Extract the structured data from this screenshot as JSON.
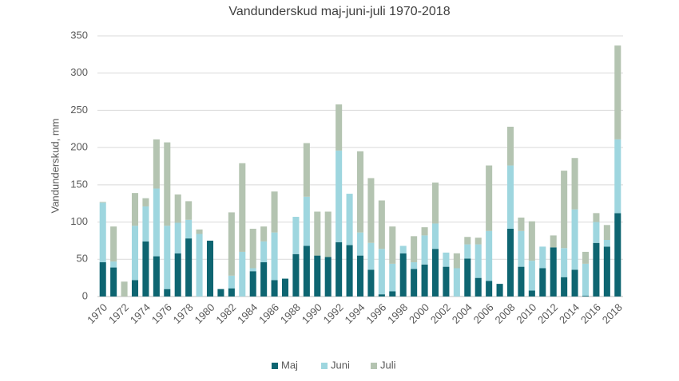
{
  "chart_data": {
    "type": "stacked_bar",
    "title": "Vandunderskud maj-juni-juli 1970-2018",
    "y_label": "Vandunderskud, mm",
    "categories": [
      "1970",
      null,
      "1972",
      null,
      "1974",
      null,
      "1976",
      null,
      "1978",
      null,
      "1980",
      null,
      "1982",
      null,
      "1984",
      null,
      "1986",
      null,
      "1988",
      null,
      "1990",
      null,
      "1992",
      null,
      "1994",
      null,
      "1996",
      null,
      "1998",
      null,
      "2000",
      null,
      "2002",
      null,
      "2004",
      null,
      "2006",
      null,
      "2008",
      null,
      "2010",
      null,
      "2012",
      null,
      "2014",
      null,
      "2016",
      null,
      "2018"
    ],
    "series": [
      {
        "name": "Maj",
        "color": "#0e6571",
        "values": [
          46,
          39,
          0,
          22,
          74,
          54,
          10,
          58,
          78,
          0,
          75,
          10,
          11,
          0,
          34,
          46,
          22,
          24,
          57,
          68,
          55,
          53,
          73,
          69,
          55,
          36,
          3,
          7,
          58,
          37,
          43,
          64,
          40,
          0,
          51,
          25,
          21,
          17,
          91,
          40,
          8,
          38,
          66,
          26,
          36,
          1,
          72,
          67,
          112
        ]
      },
      {
        "name": "Juni",
        "color": "#9ed6df",
        "values": [
          80,
          8,
          0,
          73,
          47,
          91,
          85,
          41,
          25,
          84,
          0,
          0,
          17,
          60,
          4,
          28,
          64,
          0,
          50,
          66,
          0,
          0,
          123,
          69,
          31,
          36,
          61,
          37,
          10,
          9,
          39,
          34,
          19,
          38,
          19,
          45,
          67,
          0,
          85,
          48,
          40,
          29,
          0,
          39,
          81,
          43,
          28,
          9,
          99
        ]
      },
      {
        "name": "Juli",
        "color": "#b4c4b1",
        "values": [
          1,
          47,
          20,
          44,
          11,
          66,
          112,
          38,
          25,
          6,
          0,
          0,
          85,
          119,
          53,
          20,
          55,
          0,
          0,
          72,
          59,
          61,
          62,
          0,
          109,
          87,
          65,
          50,
          0,
          35,
          11,
          55,
          0,
          20,
          10,
          9,
          88,
          0,
          52,
          18,
          53,
          0,
          16,
          104,
          69,
          16,
          12,
          20,
          126
        ]
      }
    ],
    "ylim": [
      0,
      350
    ],
    "yticks": [
      0,
      50,
      100,
      150,
      200,
      250,
      300,
      350
    ],
    "grid": true
  }
}
